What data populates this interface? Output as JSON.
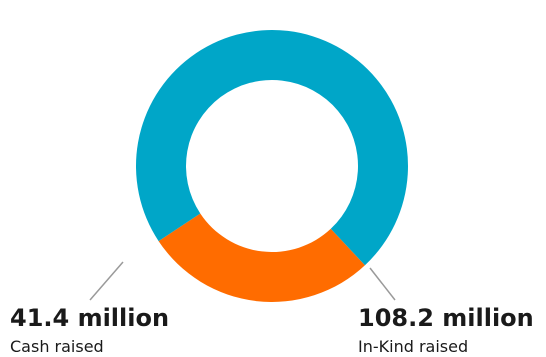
{
  "chart_data": {
    "type": "pie",
    "variant": "donut",
    "series": [
      {
        "name": "Cash raised",
        "value": 41.4,
        "value_label": "41.4 million",
        "color": "#ff6c00"
      },
      {
        "name": "In-Kind raised",
        "value": 108.2,
        "value_label": "108.2 million",
        "color": "#00a6c8"
      }
    ]
  }
}
